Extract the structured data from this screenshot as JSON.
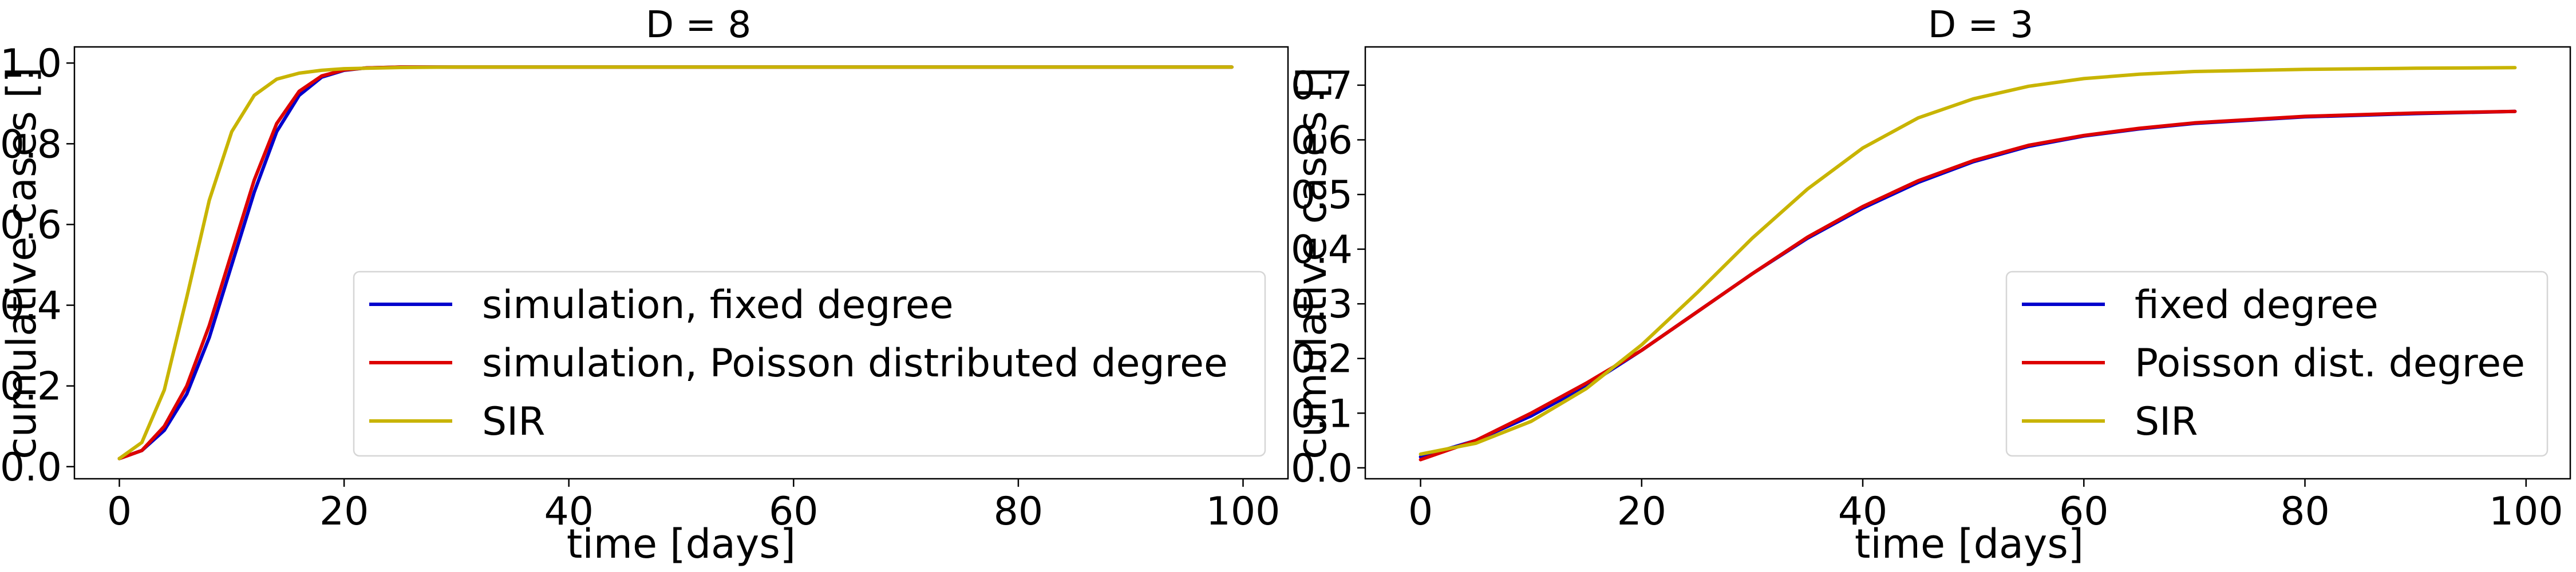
{
  "chart_data": [
    {
      "type": "line",
      "title": "D = 8",
      "xlabel": "time [days]",
      "ylabel": "cumulative cases []",
      "xlim": [
        -4,
        104
      ],
      "ylim": [
        -0.03,
        1.04
      ],
      "xticks": [
        0,
        20,
        40,
        60,
        80,
        100
      ],
      "yticks": [
        0.0,
        0.2,
        0.4,
        0.6,
        0.8,
        1.0
      ],
      "ytick_decimals": 1,
      "grid": false,
      "legend": "lower-right",
      "series": [
        {
          "name": "simulation, fixed degree",
          "color": "#0000cc",
          "x": [
            0,
            2,
            4,
            6,
            8,
            10,
            12,
            14,
            16,
            18,
            20,
            22,
            25,
            30,
            40,
            60,
            80,
            99
          ],
          "y": [
            0.02,
            0.04,
            0.09,
            0.18,
            0.32,
            0.5,
            0.68,
            0.83,
            0.92,
            0.965,
            0.982,
            0.988,
            0.99,
            0.99,
            0.99,
            0.99,
            0.99,
            0.99
          ]
        },
        {
          "name": "simulation, Poisson distributed degree",
          "color": "#dd0000",
          "x": [
            0,
            2,
            4,
            6,
            8,
            10,
            12,
            14,
            16,
            18,
            20,
            22,
            25,
            30,
            40,
            60,
            80,
            99
          ],
          "y": [
            0.02,
            0.04,
            0.1,
            0.2,
            0.35,
            0.53,
            0.71,
            0.85,
            0.93,
            0.968,
            0.983,
            0.988,
            0.99,
            0.99,
            0.99,
            0.99,
            0.99,
            0.99
          ]
        },
        {
          "name": "SIR",
          "color": "#c8b400",
          "x": [
            0,
            2,
            4,
            6,
            8,
            10,
            12,
            14,
            16,
            18,
            20,
            25,
            30,
            40,
            60,
            80,
            99
          ],
          "y": [
            0.02,
            0.06,
            0.19,
            0.42,
            0.66,
            0.83,
            0.92,
            0.96,
            0.975,
            0.982,
            0.986,
            0.989,
            0.99,
            0.99,
            0.99,
            0.99,
            0.99
          ]
        }
      ]
    },
    {
      "type": "line",
      "title": "D = 3",
      "xlabel": "time [days]",
      "ylabel": "cumulative cases []",
      "xlim": [
        -5,
        104
      ],
      "ylim": [
        -0.02,
        0.77
      ],
      "xticks": [
        0,
        20,
        40,
        60,
        80,
        100
      ],
      "yticks": [
        0.0,
        0.1,
        0.2,
        0.3,
        0.4,
        0.5,
        0.6,
        0.7
      ],
      "ytick_decimals": 1,
      "grid": false,
      "legend": "lower-right",
      "series": [
        {
          "name": "fixed degree",
          "color": "#0000cc",
          "x": [
            0,
            5,
            10,
            15,
            20,
            25,
            30,
            35,
            40,
            45,
            50,
            55,
            60,
            65,
            70,
            80,
            90,
            99
          ],
          "y": [
            0.02,
            0.05,
            0.095,
            0.15,
            0.215,
            0.285,
            0.355,
            0.42,
            0.475,
            0.522,
            0.56,
            0.588,
            0.607,
            0.62,
            0.63,
            0.642,
            0.648,
            0.652
          ]
        },
        {
          "name": "Poisson dist. degree",
          "color": "#dd0000",
          "x": [
            0,
            5,
            10,
            15,
            20,
            25,
            30,
            35,
            40,
            45,
            50,
            55,
            60,
            65,
            70,
            80,
            90,
            99
          ],
          "y": [
            0.015,
            0.05,
            0.1,
            0.155,
            0.215,
            0.285,
            0.355,
            0.422,
            0.478,
            0.525,
            0.562,
            0.59,
            0.608,
            0.621,
            0.631,
            0.643,
            0.649,
            0.652
          ]
        },
        {
          "name": "SIR",
          "color": "#c8b400",
          "x": [
            0,
            5,
            10,
            15,
            20,
            25,
            30,
            35,
            40,
            45,
            50,
            55,
            60,
            65,
            70,
            80,
            90,
            99
          ],
          "y": [
            0.025,
            0.045,
            0.085,
            0.145,
            0.225,
            0.32,
            0.42,
            0.51,
            0.585,
            0.64,
            0.675,
            0.698,
            0.712,
            0.72,
            0.725,
            0.729,
            0.731,
            0.732
          ]
        }
      ]
    }
  ]
}
